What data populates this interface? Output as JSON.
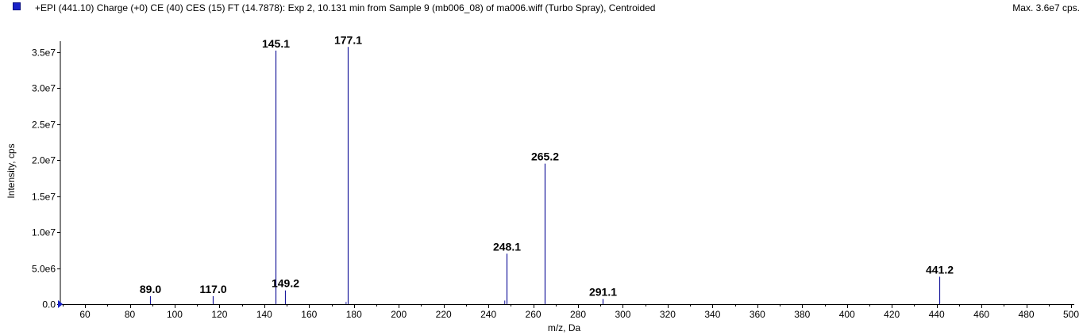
{
  "header": {
    "title": "+EPI (441.10) Charge (+0) CE (40) CES (15) FT (14.7878): Exp 2, 10.131 min from Sample 9 (mb006_08) of ma006.wiff (Turbo Spray), Centroided",
    "max_label": "Max. 3.6e7 cps."
  },
  "colors": {
    "series": "#1a1a9c",
    "axis": "#000000",
    "swatch": "#1a23c8"
  },
  "chart_data": {
    "type": "bar",
    "title": "+EPI (441.10) Charge (+0) CE (40) CES (15) FT (14.7878): Exp 2, 10.131 min from Sample 9 (mb006_08) of ma006.wiff (Turbo Spray), Centroided",
    "xlabel": "m/z, Da",
    "ylabel": "Intensity, cps",
    "xlim": [
      49,
      500
    ],
    "ylim": [
      0,
      36500000
    ],
    "x_ticks": [
      60,
      80,
      100,
      120,
      140,
      160,
      180,
      200,
      220,
      240,
      260,
      280,
      300,
      320,
      340,
      360,
      380,
      400,
      420,
      440,
      460,
      480,
      500
    ],
    "y_ticks": [
      {
        "value": 0,
        "label": "0.0"
      },
      {
        "value": 5000000,
        "label": "5.0e6"
      },
      {
        "value": 10000000,
        "label": "1.0e7"
      },
      {
        "value": 15000000,
        "label": "1.5e7"
      },
      {
        "value": 20000000,
        "label": "2.0e7"
      },
      {
        "value": 25000000,
        "label": "2.5e7"
      },
      {
        "value": 30000000,
        "label": "3.0e7"
      },
      {
        "value": 35000000,
        "label": "3.5e7"
      }
    ],
    "peaks": [
      {
        "mz": 89.0,
        "intensity": 1100000,
        "label": "89.0"
      },
      {
        "mz": 117.0,
        "intensity": 1100000,
        "label": "117.0"
      },
      {
        "mz": 145.1,
        "intensity": 35200000,
        "label": "145.1"
      },
      {
        "mz": 149.2,
        "intensity": 1900000,
        "label": "149.2"
      },
      {
        "mz": 177.1,
        "intensity": 35700000,
        "label": "177.1"
      },
      {
        "mz": 248.1,
        "intensity": 7000000,
        "label": "248.1"
      },
      {
        "mz": 265.2,
        "intensity": 19500000,
        "label": "265.2"
      },
      {
        "mz": 291.1,
        "intensity": 700000,
        "label": "291.1"
      },
      {
        "mz": 441.2,
        "intensity": 3800000,
        "label": "441.2"
      }
    ],
    "minor_peaks": [
      {
        "mz": 176.5,
        "intensity": 300000
      },
      {
        "mz": 247.3,
        "intensity": 500000
      }
    ],
    "grid": false,
    "legend": "top-left"
  }
}
